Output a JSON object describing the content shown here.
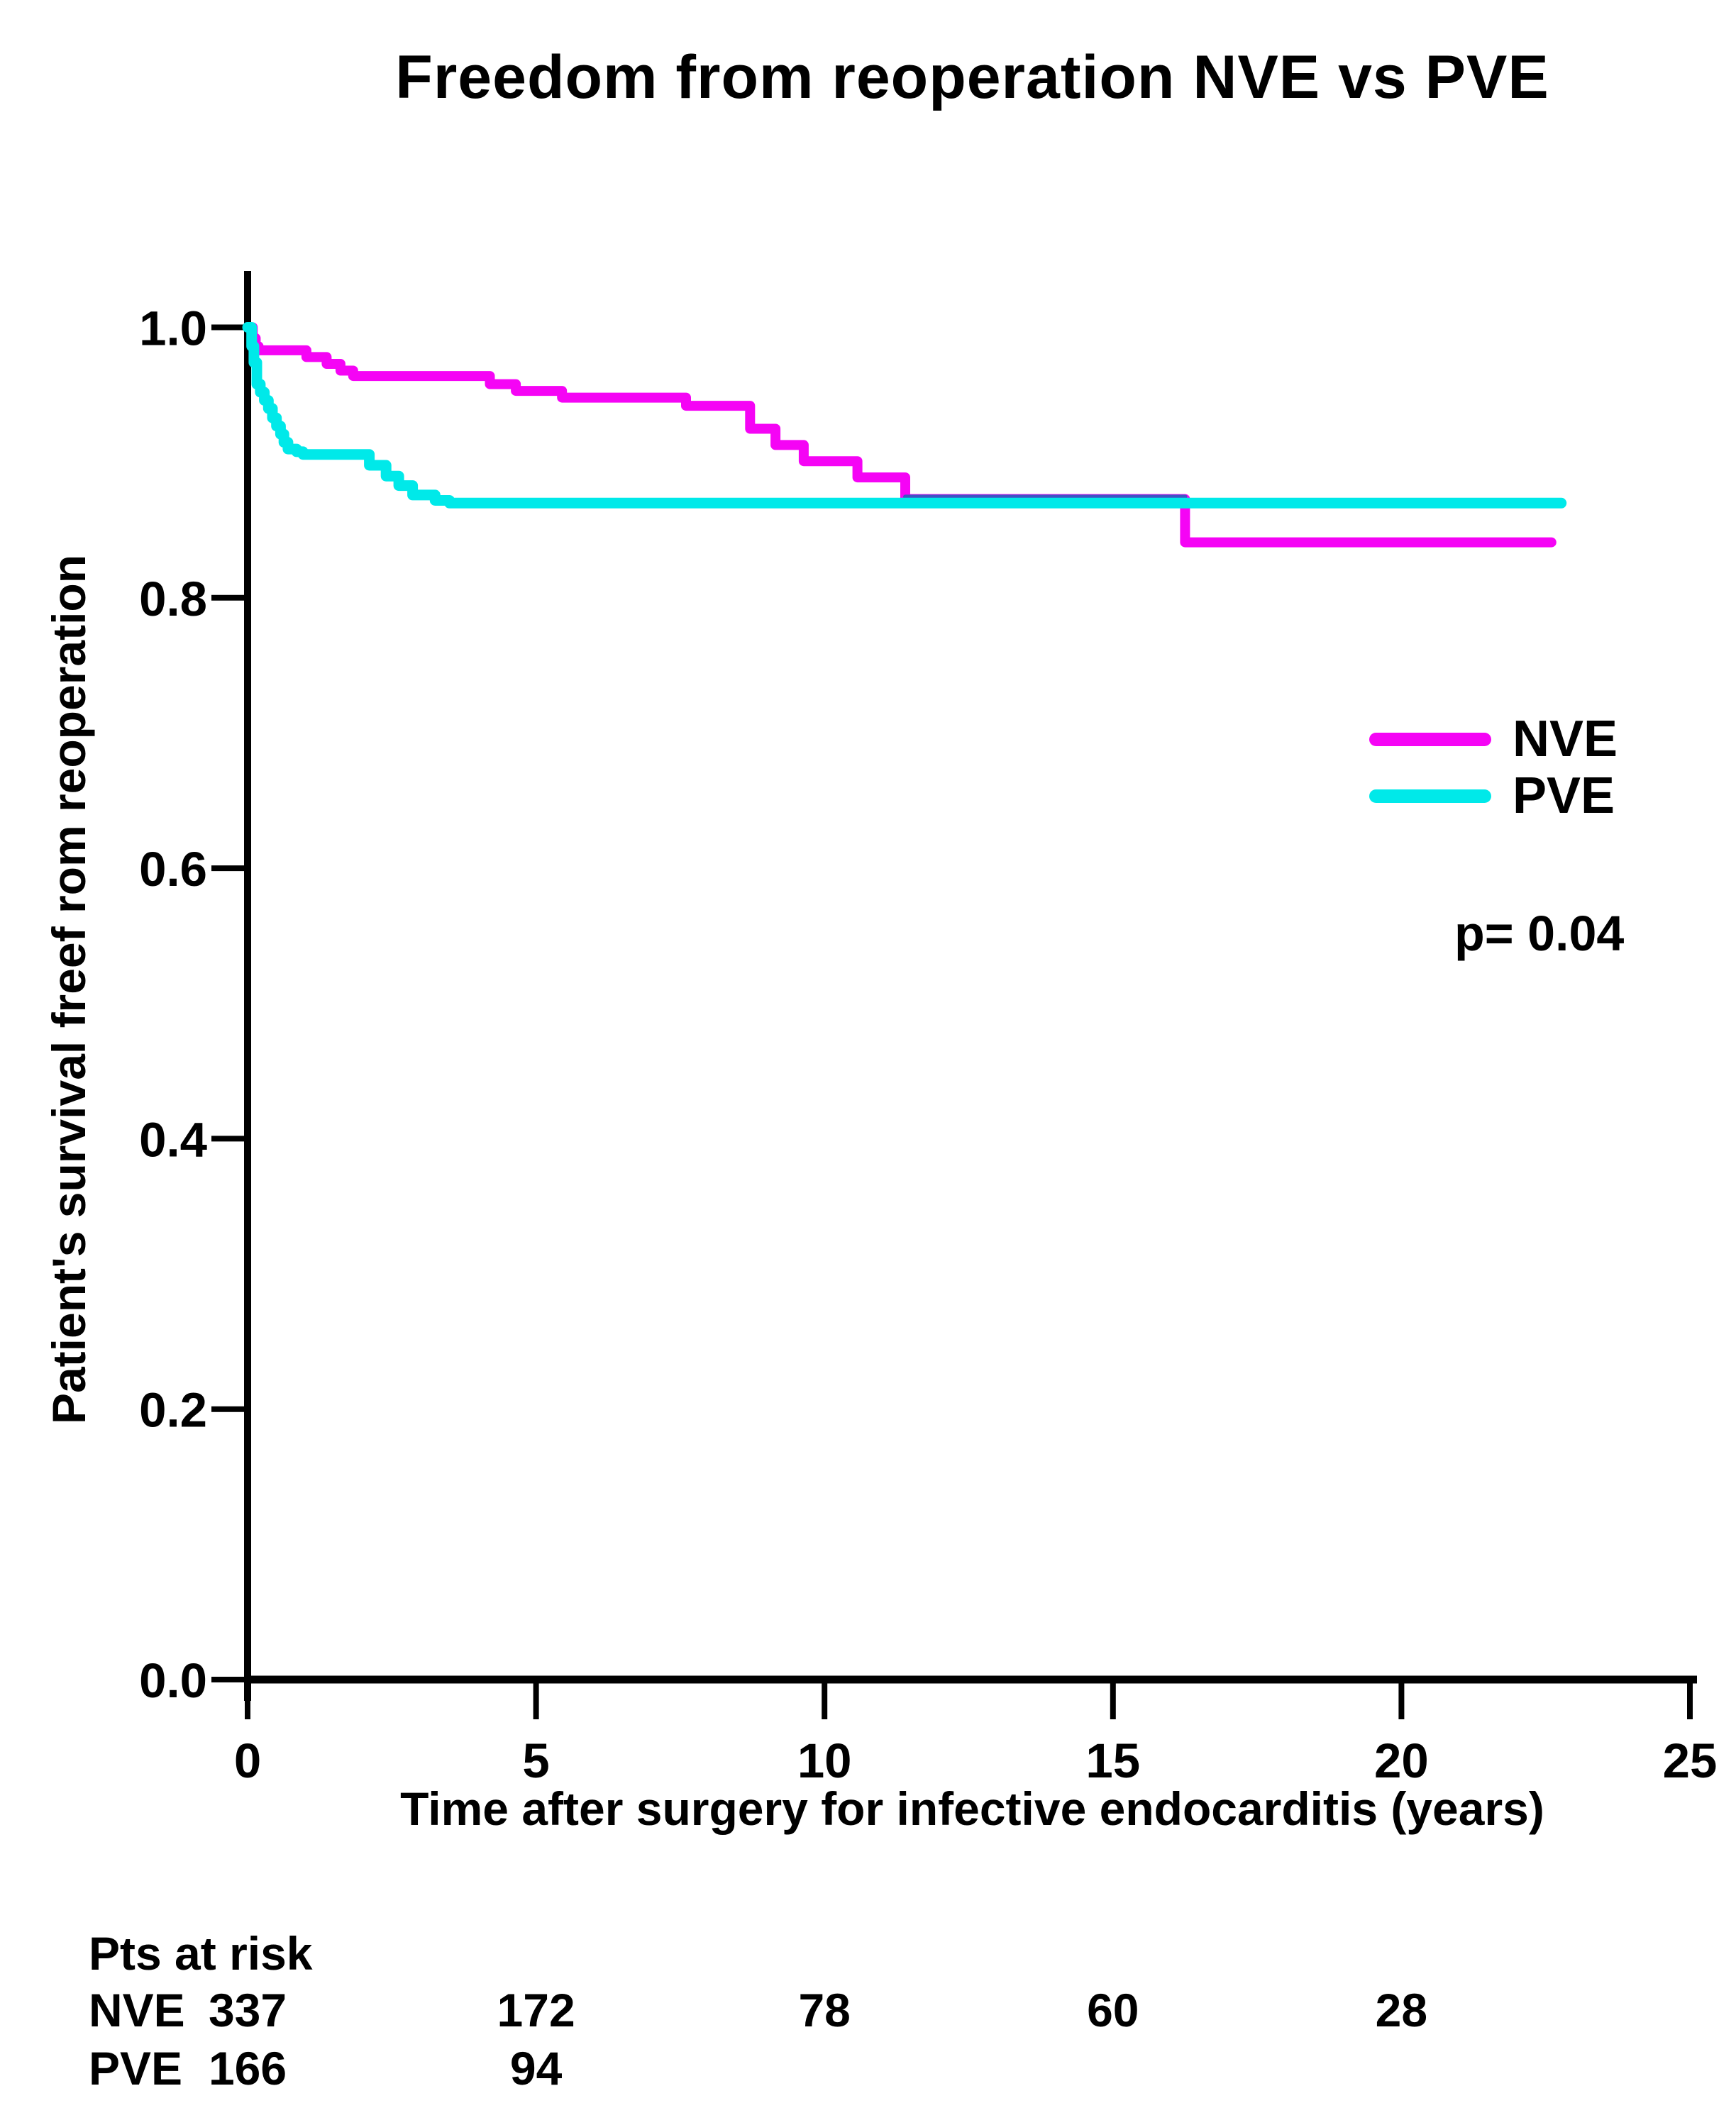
{
  "page": {
    "background": "#ffffff"
  },
  "chart_data": {
    "type": "line",
    "subtype": "kaplan-meier-step",
    "title": "Freedom from reoperation NVE vs PVE",
    "xlabel": "Time after surgery for infective endocarditis (years)",
    "ylabel": "Patient's survival freef rom reoperation",
    "annotation": "p= 0.04",
    "xlim": [
      0,
      25
    ],
    "ylim": [
      0.0,
      1.0
    ],
    "xticks": [
      "0",
      "5",
      "10",
      "15",
      "20",
      "25"
    ],
    "yticks": [
      "0.0",
      "0.2",
      "0.4",
      "0.6",
      "0.8",
      "1.0"
    ],
    "grid": false,
    "legend_position": "right-middle",
    "axis_color": "#000000",
    "series": [
      {
        "name": "NVE",
        "color": "#f504f5",
        "end_year": 22.6,
        "points": [
          [
            0,
            1.0
          ],
          [
            0.09,
            0.992
          ],
          [
            0.14,
            0.986
          ],
          [
            0.19,
            0.983
          ],
          [
            1.02,
            0.978
          ],
          [
            1.37,
            0.973
          ],
          [
            1.61,
            0.968
          ],
          [
            1.83,
            0.964
          ],
          [
            4.2,
            0.958
          ],
          [
            4.65,
            0.953
          ],
          [
            5.45,
            0.948
          ],
          [
            7.6,
            0.942
          ],
          [
            8.71,
            0.925
          ],
          [
            9.15,
            0.913
          ],
          [
            9.64,
            0.901
          ],
          [
            10.57,
            0.889
          ],
          [
            11.4,
            0.873
          ],
          [
            16.25,
            0.841
          ]
        ]
      },
      {
        "name": "PVE",
        "color": "#00e9e9",
        "end_year": 22.77,
        "points": [
          [
            0,
            1.0
          ],
          [
            0.07,
            0.986
          ],
          [
            0.11,
            0.974
          ],
          [
            0.16,
            0.958
          ],
          [
            0.22,
            0.952
          ],
          [
            0.29,
            0.946
          ],
          [
            0.36,
            0.94
          ],
          [
            0.43,
            0.933
          ],
          [
            0.5,
            0.927
          ],
          [
            0.57,
            0.921
          ],
          [
            0.63,
            0.915
          ],
          [
            0.7,
            0.91
          ],
          [
            0.85,
            0.908
          ],
          [
            0.96,
            0.906
          ],
          [
            2.11,
            0.898
          ],
          [
            2.4,
            0.89
          ],
          [
            2.62,
            0.883
          ],
          [
            2.86,
            0.876
          ],
          [
            3.25,
            0.872
          ],
          [
            3.5,
            0.87
          ]
        ]
      }
    ],
    "overlap_edge": {
      "color": "#3d55c4",
      "from_year": 11.4,
      "to_year": 16.25,
      "at_value": 0.87
    }
  },
  "risk_table": {
    "header": "Pts at risk",
    "col_years": [
      0,
      5,
      10,
      15,
      20
    ],
    "rows": [
      {
        "label": "NVE",
        "values": [
          "337",
          "172",
          "78",
          "60",
          "28"
        ]
      },
      {
        "label": "PVE",
        "values": [
          "166",
          "94",
          "",
          "",
          ""
        ]
      }
    ]
  }
}
